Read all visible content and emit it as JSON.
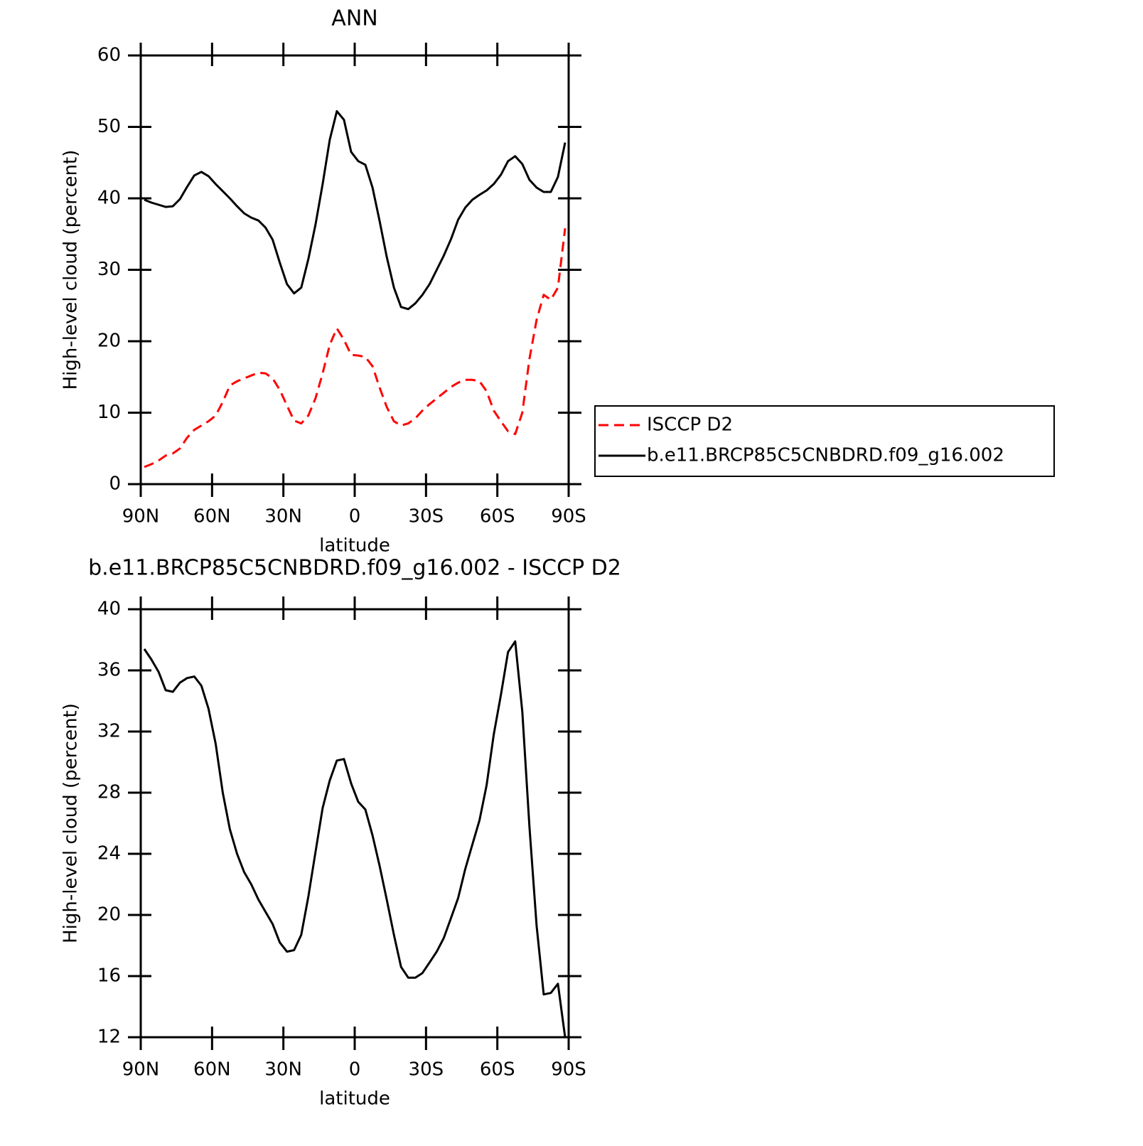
{
  "chart_data": [
    {
      "type": "line",
      "title": "ANN",
      "xlabel": "latitude",
      "ylabel": "High-level cloud (percent)",
      "x": [
        88.5,
        85.5,
        82.5,
        79.5,
        76.5,
        73.5,
        70.5,
        67.5,
        64.5,
        61.5,
        58.5,
        55.5,
        52.5,
        49.5,
        46.5,
        43.5,
        40.5,
        37.5,
        34.5,
        31.5,
        28.5,
        25.5,
        22.5,
        19.5,
        16.5,
        13.5,
        10.5,
        7.5,
        4.5,
        1.5,
        -1.5,
        -4.5,
        -7.5,
        -10.5,
        -13.5,
        -16.5,
        -19.5,
        -22.5,
        -25.5,
        -28.5,
        -31.5,
        -34.5,
        -37.5,
        -40.5,
        -43.5,
        -46.5,
        -49.5,
        -52.5,
        -55.5,
        -58.5,
        -61.5,
        -64.5,
        -67.5,
        -70.5,
        -73.5,
        -76.5,
        -79.5,
        -82.5,
        -85.5,
        -88.5
      ],
      "xlim": [
        90,
        -90
      ],
      "xticks": [
        {
          "value": 90,
          "label": "90N"
        },
        {
          "value": 60,
          "label": "60N"
        },
        {
          "value": 30,
          "label": "30N"
        },
        0,
        {
          "value": -30,
          "label": "30S"
        },
        {
          "value": -60,
          "label": "60S"
        },
        {
          "value": -90,
          "label": "90S"
        }
      ],
      "ylim": [
        0,
        60
      ],
      "yticks": [
        0,
        10,
        20,
        30,
        40,
        50,
        60
      ],
      "legend": "right",
      "series": [
        {
          "name": "ISCCP D2",
          "color": "#ff0000",
          "line_style": "dashed",
          "values": [
            2.4,
            2.8,
            3.3,
            4.0,
            4.3,
            5.0,
            6.5,
            7.6,
            8.2,
            8.8,
            9.6,
            11.5,
            13.8,
            14.4,
            14.8,
            15.2,
            15.6,
            15.5,
            14.8,
            13.2,
            11.0,
            8.9,
            8.5,
            9.6,
            12.0,
            15.5,
            19.5,
            21.8,
            20.2,
            18.1,
            18.0,
            17.8,
            16.5,
            13.5,
            10.8,
            8.8,
            8.2,
            8.5,
            9.2,
            10.3,
            11.2,
            12.0,
            12.8,
            13.6,
            14.2,
            14.6,
            14.6,
            14.4,
            13.0,
            10.3,
            8.8,
            7.4,
            7.0,
            10.0,
            17.5,
            23.0,
            26.5,
            25.8,
            27.5,
            35.8
          ]
        },
        {
          "name": "b.e11.BRCP85C5CNBDRD.f09_g16.002",
          "color": "#000000",
          "line_style": "solid",
          "values": [
            39.8,
            39.4,
            39.1,
            38.8,
            38.9,
            39.9,
            41.6,
            43.2,
            43.7,
            43.1,
            42.0,
            41.0,
            40.0,
            38.9,
            37.9,
            37.3,
            36.9,
            35.9,
            34.2,
            31.0,
            28.0,
            26.7,
            27.5,
            31.5,
            36.3,
            42.0,
            48.2,
            52.2,
            51.0,
            46.5,
            45.2,
            44.7,
            41.5,
            36.8,
            31.8,
            27.5,
            24.8,
            24.5,
            25.3,
            26.5,
            28.0,
            30.0,
            32.0,
            34.3,
            37.0,
            38.7,
            39.8,
            40.5,
            41.1,
            42.0,
            43.3,
            45.2,
            45.9,
            44.8,
            42.6,
            41.5,
            40.9,
            40.9,
            43.0,
            47.8
          ]
        }
      ]
    },
    {
      "type": "line",
      "title": "b.e11.BRCP85C5CNBDRD.f09_g16.002 - ISCCP D2",
      "xlabel": "latitude",
      "ylabel": "High-level cloud (percent)",
      "x": [
        88.5,
        85.5,
        82.5,
        79.5,
        76.5,
        73.5,
        70.5,
        67.5,
        64.5,
        61.5,
        58.5,
        55.5,
        52.5,
        49.5,
        46.5,
        43.5,
        40.5,
        37.5,
        34.5,
        31.5,
        28.5,
        25.5,
        22.5,
        19.5,
        16.5,
        13.5,
        10.5,
        7.5,
        4.5,
        1.5,
        -1.5,
        -4.5,
        -7.5,
        -10.5,
        -13.5,
        -16.5,
        -19.5,
        -22.5,
        -25.5,
        -28.5,
        -31.5,
        -34.5,
        -37.5,
        -40.5,
        -43.5,
        -46.5,
        -49.5,
        -52.5,
        -55.5,
        -58.5,
        -61.5,
        -64.5,
        -67.5,
        -70.5,
        -73.5,
        -76.5,
        -79.5,
        -82.5,
        -85.5,
        -88.5
      ],
      "xlim": [
        90,
        -90
      ],
      "xticks": [
        {
          "value": 90,
          "label": "90N"
        },
        {
          "value": 60,
          "label": "60N"
        },
        {
          "value": 30,
          "label": "30N"
        },
        0,
        {
          "value": -30,
          "label": "30S"
        },
        {
          "value": -60,
          "label": "60S"
        },
        {
          "value": -90,
          "label": "90S"
        }
      ],
      "ylim": [
        12,
        40
      ],
      "yticks": [
        12,
        16,
        20,
        24,
        28,
        32,
        36,
        40
      ],
      "color": "#000000",
      "line_style": "solid",
      "values": [
        37.4,
        36.7,
        35.9,
        34.7,
        34.6,
        35.2,
        35.5,
        35.6,
        35.0,
        33.5,
        31.2,
        28.0,
        25.6,
        24.0,
        22.8,
        22.0,
        21.0,
        20.2,
        19.4,
        18.2,
        17.6,
        17.7,
        18.7,
        21.2,
        24.1,
        27.0,
        28.8,
        30.1,
        30.2,
        28.6,
        27.4,
        26.9,
        25.2,
        23.2,
        21.0,
        18.7,
        16.6,
        15.9,
        15.9,
        16.2,
        16.9,
        17.6,
        18.5,
        19.8,
        21.1,
        23.0,
        24.6,
        26.2,
        28.5,
        31.8,
        34.4,
        37.2,
        37.9,
        33.3,
        25.8,
        19.3,
        14.8,
        14.9,
        15.5,
        12.0
      ]
    }
  ]
}
